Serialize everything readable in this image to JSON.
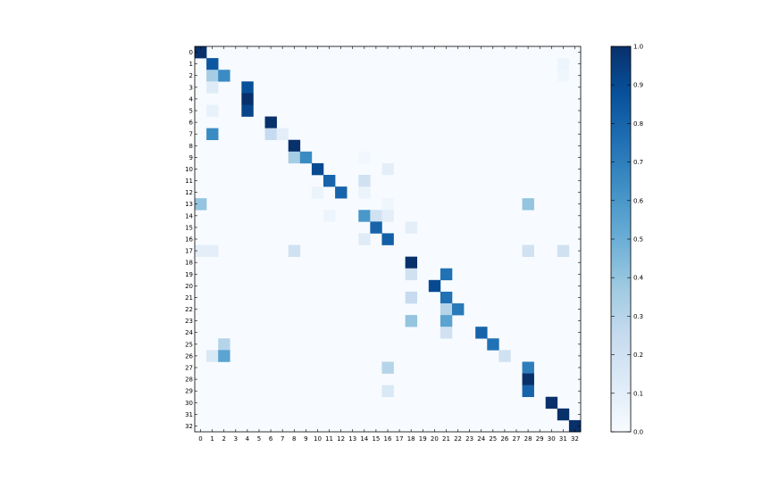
{
  "chart_data": {
    "type": "heatmap",
    "title": "",
    "xlabel": "",
    "ylabel": "",
    "x_labels": [
      "0",
      "1",
      "2",
      "3",
      "4",
      "5",
      "6",
      "7",
      "8",
      "9",
      "10",
      "11",
      "12",
      "13",
      "14",
      "15",
      "16",
      "17",
      "18",
      "19",
      "20",
      "21",
      "22",
      "23",
      "24",
      "25",
      "26",
      "27",
      "28",
      "29",
      "30",
      "31",
      "32"
    ],
    "y_labels": [
      "0",
      "1",
      "2",
      "3",
      "4",
      "5",
      "6",
      "7",
      "8",
      "9",
      "10",
      "11",
      "12",
      "13",
      "14",
      "15",
      "16",
      "17",
      "18",
      "19",
      "20",
      "21",
      "22",
      "23",
      "24",
      "25",
      "26",
      "27",
      "28",
      "29",
      "30",
      "31",
      "32"
    ],
    "colorbar": {
      "min": 0.0,
      "max": 1.0,
      "ticks": [
        "0.0",
        "0.1",
        "0.2",
        "0.3",
        "0.4",
        "0.5",
        "0.6",
        "0.7",
        "0.8",
        "0.9",
        "1.0"
      ]
    },
    "colormap": "Blues",
    "background_value": 0.0,
    "cells": [
      {
        "row": 0,
        "col": 0,
        "value": 1.0
      },
      {
        "row": 1,
        "col": 1,
        "value": 0.85
      },
      {
        "row": 1,
        "col": 31,
        "value": 0.05
      },
      {
        "row": 2,
        "col": 1,
        "value": 0.35
      },
      {
        "row": 2,
        "col": 2,
        "value": 0.65
      },
      {
        "row": 2,
        "col": 31,
        "value": 0.04
      },
      {
        "row": 3,
        "col": 1,
        "value": 0.12
      },
      {
        "row": 3,
        "col": 4,
        "value": 0.88
      },
      {
        "row": 4,
        "col": 4,
        "value": 1.0
      },
      {
        "row": 5,
        "col": 1,
        "value": 0.08
      },
      {
        "row": 5,
        "col": 4,
        "value": 0.92
      },
      {
        "row": 6,
        "col": 6,
        "value": 1.0
      },
      {
        "row": 7,
        "col": 1,
        "value": 0.65
      },
      {
        "row": 7,
        "col": 6,
        "value": 0.25
      },
      {
        "row": 7,
        "col": 7,
        "value": 0.1
      },
      {
        "row": 8,
        "col": 8,
        "value": 1.0
      },
      {
        "row": 9,
        "col": 8,
        "value": 0.35
      },
      {
        "row": 9,
        "col": 9,
        "value": 0.65
      },
      {
        "row": 9,
        "col": 14,
        "value": 0.03
      },
      {
        "row": 10,
        "col": 10,
        "value": 0.9
      },
      {
        "row": 10,
        "col": 16,
        "value": 0.1
      },
      {
        "row": 11,
        "col": 11,
        "value": 0.8
      },
      {
        "row": 11,
        "col": 14,
        "value": 0.2
      },
      {
        "row": 12,
        "col": 10,
        "value": 0.06
      },
      {
        "row": 12,
        "col": 12,
        "value": 0.8
      },
      {
        "row": 12,
        "col": 14,
        "value": 0.06
      },
      {
        "row": 13,
        "col": 0,
        "value": 0.4
      },
      {
        "row": 13,
        "col": 16,
        "value": 0.04
      },
      {
        "row": 13,
        "col": 28,
        "value": 0.4
      },
      {
        "row": 14,
        "col": 11,
        "value": 0.05
      },
      {
        "row": 14,
        "col": 14,
        "value": 0.6
      },
      {
        "row": 14,
        "col": 15,
        "value": 0.2
      },
      {
        "row": 14,
        "col": 16,
        "value": 0.1
      },
      {
        "row": 15,
        "col": 15,
        "value": 0.8
      },
      {
        "row": 15,
        "col": 18,
        "value": 0.1
      },
      {
        "row": 16,
        "col": 14,
        "value": 0.12
      },
      {
        "row": 16,
        "col": 16,
        "value": 0.82
      },
      {
        "row": 17,
        "col": 0,
        "value": 0.1
      },
      {
        "row": 17,
        "col": 1,
        "value": 0.1
      },
      {
        "row": 17,
        "col": 8,
        "value": 0.2
      },
      {
        "row": 17,
        "col": 28,
        "value": 0.2
      },
      {
        "row": 17,
        "col": 31,
        "value": 0.2
      },
      {
        "row": 18,
        "col": 18,
        "value": 1.0
      },
      {
        "row": 19,
        "col": 18,
        "value": 0.2
      },
      {
        "row": 19,
        "col": 21,
        "value": 0.75
      },
      {
        "row": 20,
        "col": 20,
        "value": 0.9
      },
      {
        "row": 21,
        "col": 18,
        "value": 0.25
      },
      {
        "row": 21,
        "col": 21,
        "value": 0.75
      },
      {
        "row": 22,
        "col": 21,
        "value": 0.3
      },
      {
        "row": 22,
        "col": 22,
        "value": 0.72
      },
      {
        "row": 23,
        "col": 18,
        "value": 0.4
      },
      {
        "row": 23,
        "col": 21,
        "value": 0.55
      },
      {
        "row": 24,
        "col": 21,
        "value": 0.2
      },
      {
        "row": 24,
        "col": 24,
        "value": 0.8
      },
      {
        "row": 25,
        "col": 2,
        "value": 0.3
      },
      {
        "row": 25,
        "col": 25,
        "value": 0.75
      },
      {
        "row": 26,
        "col": 1,
        "value": 0.15
      },
      {
        "row": 26,
        "col": 2,
        "value": 0.55
      },
      {
        "row": 26,
        "col": 26,
        "value": 0.2
      },
      {
        "row": 27,
        "col": 16,
        "value": 0.3
      },
      {
        "row": 27,
        "col": 28,
        "value": 0.7
      },
      {
        "row": 28,
        "col": 28,
        "value": 1.0
      },
      {
        "row": 29,
        "col": 16,
        "value": 0.15
      },
      {
        "row": 29,
        "col": 28,
        "value": 0.8
      },
      {
        "row": 30,
        "col": 30,
        "value": 1.0
      },
      {
        "row": 31,
        "col": 31,
        "value": 1.0
      },
      {
        "row": 32,
        "col": 32,
        "value": 1.0
      }
    ]
  }
}
